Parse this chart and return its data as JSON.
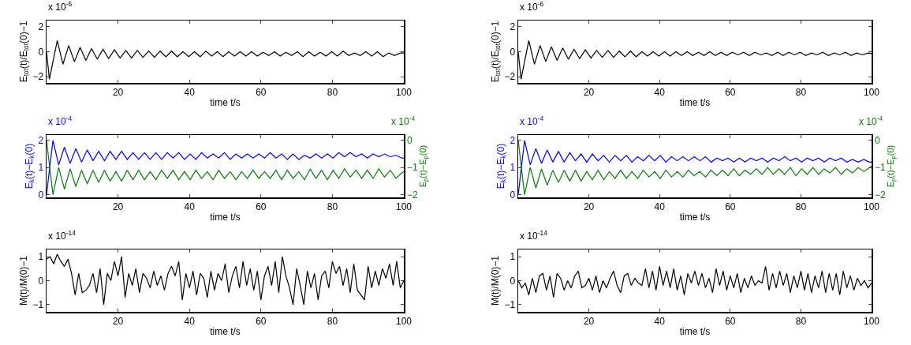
{
  "chart_data": [
    {
      "type": "line",
      "xlabel": "time t/s",
      "ylabel": "E$_{tot}$(t)/E$_{tot}$(0)−1",
      "annotations": [
        "x 10$^{-6}$"
      ],
      "xlim": [
        0,
        100
      ],
      "xticks": [
        20,
        40,
        60,
        80,
        100
      ],
      "ylim": [
        -2.5,
        2.5
      ],
      "yticks": [
        -2,
        0,
        2
      ],
      "grid": false,
      "x": [
        0,
        0.8,
        3.0,
        4.6,
        6.2,
        7.8,
        9.4,
        11.0,
        12.6,
        14.2,
        15.8,
        17.4,
        19.0,
        20.6,
        22.2,
        23.8,
        25.4,
        27.0,
        28.6,
        30.2,
        31.8,
        33.4,
        35.0,
        36.6,
        38.2,
        39.8,
        41.4,
        43.0,
        44.6,
        46.2,
        47.8,
        49.4,
        51.0,
        52.6,
        54.2,
        55.8,
        57.4,
        59.0,
        60.6,
        62.2,
        63.8,
        65.4,
        67.0,
        68.6,
        70.2,
        71.8,
        73.4,
        75.0,
        76.6,
        78.2,
        79.8,
        81.4,
        83.0,
        84.6,
        86.2,
        87.8,
        89.4,
        91.0,
        92.6,
        94.2,
        95.8,
        97.4,
        99.0,
        100
      ],
      "series": [
        {
          "color": "#000000",
          "values": [
            0,
            -2.2,
            0.9,
            -1.0,
            0.5,
            -0.8,
            0.35,
            -0.7,
            0.25,
            -0.6,
            0.2,
            -0.55,
            0.15,
            -0.5,
            0.1,
            -0.5,
            0.1,
            -0.45,
            0.05,
            -0.45,
            0.05,
            -0.4,
            0.05,
            -0.4,
            0.0,
            -0.4,
            0.0,
            -0.4,
            0.05,
            -0.35,
            0.0,
            -0.4,
            0.0,
            -0.35,
            0.0,
            -0.35,
            0.0,
            -0.35,
            -0.05,
            -0.3,
            0.0,
            -0.35,
            -0.05,
            -0.3,
            0.0,
            -0.4,
            0.0,
            -0.35,
            -0.05,
            -0.35,
            0.0,
            -0.35,
            0.05,
            -0.3,
            -0.1,
            -0.3,
            0.0,
            -0.35,
            0.0,
            -0.4,
            -0.1,
            -0.3,
            -0.1,
            -0.1
          ]
        }
      ]
    },
    {
      "type": "line",
      "xlabel": "time t/s",
      "ylabel": "E$_{tot}$(t)/E$_{tot}$(0)−1",
      "annotations": [
        "x 10$^{-6}$"
      ],
      "xlim": [
        0,
        100
      ],
      "xticks": [
        20,
        40,
        60,
        80,
        100
      ],
      "ylim": [
        -2.5,
        2.5
      ],
      "yticks": [
        -2,
        0,
        2
      ],
      "grid": false,
      "x": [
        0,
        0.8,
        3.0,
        4.6,
        6.2,
        7.8,
        9.4,
        11.0,
        12.6,
        14.2,
        15.8,
        17.4,
        19.0,
        20.6,
        22.2,
        23.8,
        25.4,
        27.0,
        28.6,
        30.2,
        31.8,
        33.4,
        35.0,
        36.6,
        38.2,
        39.8,
        41.4,
        43.0,
        44.6,
        46.2,
        47.8,
        49.4,
        51.0,
        52.6,
        54.2,
        55.8,
        57.4,
        59.0,
        60.6,
        62.2,
        63.8,
        65.4,
        67.0,
        68.6,
        70.2,
        71.8,
        73.4,
        75.0,
        76.6,
        78.2,
        79.8,
        81.4,
        83.0,
        84.6,
        86.2,
        87.8,
        89.4,
        91.0,
        92.6,
        94.2,
        95.8,
        97.4,
        99.0,
        100
      ],
      "series": [
        {
          "color": "#000000",
          "values": [
            0,
            -2.2,
            0.9,
            -1.0,
            0.5,
            -0.8,
            0.4,
            -0.7,
            0.3,
            -0.6,
            0.2,
            -0.55,
            0.15,
            -0.5,
            0.1,
            -0.45,
            0.1,
            -0.45,
            0.05,
            -0.4,
            0.05,
            -0.4,
            0.0,
            -0.35,
            0.0,
            -0.35,
            0.0,
            -0.35,
            0.0,
            -0.3,
            0.0,
            -0.3,
            -0.05,
            -0.3,
            0.0,
            -0.3,
            -0.05,
            -0.3,
            -0.05,
            -0.25,
            -0.05,
            -0.3,
            -0.05,
            -0.25,
            -0.1,
            -0.3,
            -0.05,
            -0.3,
            -0.05,
            -0.25,
            -0.05,
            -0.3,
            -0.1,
            -0.25,
            -0.05,
            -0.3,
            -0.1,
            -0.25,
            -0.05,
            -0.3,
            -0.1,
            -0.25,
            -0.1,
            -0.15
          ]
        }
      ]
    },
    {
      "type": "line",
      "xlabel": "time t/s",
      "ylabel": "E$_{k}$(t)−E$_{k}$(0)",
      "y2label": "E$_{p}$(t)−E$_{p}$(0)",
      "annotations": [
        "x 10$^{-4}$",
        "x 10$^{-4}$"
      ],
      "xlim": [
        0,
        100
      ],
      "xticks": [
        20,
        40,
        60,
        80,
        100
      ],
      "ylim": [
        -0.1,
        2.2
      ],
      "yticks": [
        0,
        1,
        2
      ],
      "y2lim": [
        -2.1,
        0.2
      ],
      "y2ticks": [
        -2,
        -1,
        0
      ],
      "grid": false,
      "x": [
        0,
        1.8,
        3.4,
        5.0,
        6.6,
        8.2,
        9.8,
        11.4,
        13.0,
        14.6,
        16.2,
        17.8,
        19.4,
        21.0,
        22.6,
        24.2,
        25.8,
        27.4,
        29.0,
        30.6,
        32.2,
        33.8,
        35.4,
        37.0,
        38.6,
        40.2,
        41.8,
        43.4,
        45.0,
        46.6,
        48.2,
        49.8,
        51.4,
        53.0,
        54.6,
        56.2,
        57.8,
        59.4,
        61.0,
        62.6,
        64.2,
        65.8,
        67.4,
        69.0,
        70.6,
        72.2,
        73.8,
        75.4,
        77.0,
        78.6,
        80.2,
        81.8,
        83.4,
        85.0,
        86.6,
        88.2,
        89.8,
        91.4,
        93.0,
        94.6,
        96.2,
        97.8,
        99.4,
        100
      ],
      "series": [
        {
          "color": "#0000ff",
          "values": [
            0,
            2.0,
            1.1,
            1.75,
            1.15,
            1.7,
            1.2,
            1.65,
            1.25,
            1.6,
            1.25,
            1.6,
            1.3,
            1.6,
            1.3,
            1.55,
            1.3,
            1.55,
            1.3,
            1.55,
            1.3,
            1.55,
            1.35,
            1.55,
            1.3,
            1.5,
            1.3,
            1.55,
            1.35,
            1.5,
            1.35,
            1.55,
            1.3,
            1.5,
            1.35,
            1.5,
            1.35,
            1.5,
            1.35,
            1.55,
            1.35,
            1.5,
            1.3,
            1.5,
            1.3,
            1.45,
            1.35,
            1.5,
            1.35,
            1.5,
            1.35,
            1.55,
            1.4,
            1.55,
            1.4,
            1.5,
            1.35,
            1.5,
            1.4,
            1.5,
            1.4,
            1.45,
            1.35,
            1.35
          ]
        },
        {
          "color": "#008000",
          "axis": "y2",
          "values": [
            0,
            -2.0,
            -1.0,
            -1.8,
            -1.05,
            -1.7,
            -1.1,
            -1.6,
            -1.1,
            -1.55,
            -1.1,
            -1.5,
            -1.15,
            -1.5,
            -1.1,
            -1.45,
            -1.1,
            -1.45,
            -1.15,
            -1.45,
            -1.1,
            -1.4,
            -1.1,
            -1.45,
            -1.15,
            -1.45,
            -1.1,
            -1.4,
            -1.15,
            -1.45,
            -1.1,
            -1.4,
            -1.15,
            -1.45,
            -1.15,
            -1.4,
            -1.1,
            -1.4,
            -1.15,
            -1.4,
            -1.1,
            -1.45,
            -1.1,
            -1.4,
            -1.15,
            -1.45,
            -1.05,
            -1.4,
            -1.1,
            -1.45,
            -1.1,
            -1.4,
            -1.05,
            -1.35,
            -1.1,
            -1.4,
            -1.1,
            -1.4,
            -1.05,
            -1.35,
            -1.1,
            -1.4,
            -1.2,
            -1.15
          ]
        }
      ]
    },
    {
      "type": "line",
      "xlabel": "time t/s",
      "ylabel": "E$_{k}$(t)−E$_{k}$(0)",
      "y2label": "E$_{p}$(t)−E$_{p}$(0)",
      "annotations": [
        "x 10$^{-4}$",
        "x 10$^{-4}$"
      ],
      "xlim": [
        0,
        100
      ],
      "xticks": [
        20,
        40,
        60,
        80,
        100
      ],
      "ylim": [
        -0.1,
        2.2
      ],
      "yticks": [
        0,
        1,
        2
      ],
      "y2lim": [
        -2.1,
        0.2
      ],
      "y2ticks": [
        -2,
        -1,
        0
      ],
      "grid": false,
      "x": [
        0,
        1.8,
        3.4,
        5.0,
        6.6,
        8.2,
        9.8,
        11.4,
        13.0,
        14.6,
        16.2,
        17.8,
        19.4,
        21.0,
        22.6,
        24.2,
        25.8,
        27.4,
        29.0,
        30.6,
        32.2,
        33.8,
        35.4,
        37.0,
        38.6,
        40.2,
        41.8,
        43.4,
        45.0,
        46.6,
        48.2,
        49.8,
        51.4,
        53.0,
        54.6,
        56.2,
        57.8,
        59.4,
        61.0,
        62.6,
        64.2,
        65.8,
        67.4,
        69.0,
        70.6,
        72.2,
        73.8,
        75.4,
        77.0,
        78.6,
        80.2,
        81.8,
        83.4,
        85.0,
        86.6,
        88.2,
        89.8,
        91.4,
        93.0,
        94.6,
        96.2,
        97.8,
        99.4,
        100
      ],
      "series": [
        {
          "color": "#0000ff",
          "values": [
            0,
            2.0,
            1.1,
            1.7,
            1.15,
            1.65,
            1.2,
            1.6,
            1.2,
            1.55,
            1.25,
            1.5,
            1.2,
            1.5,
            1.25,
            1.45,
            1.2,
            1.45,
            1.25,
            1.45,
            1.2,
            1.4,
            1.25,
            1.45,
            1.25,
            1.45,
            1.2,
            1.4,
            1.25,
            1.4,
            1.25,
            1.4,
            1.25,
            1.4,
            1.2,
            1.35,
            1.25,
            1.35,
            1.2,
            1.35,
            1.2,
            1.35,
            1.25,
            1.35,
            1.2,
            1.35,
            1.25,
            1.4,
            1.25,
            1.35,
            1.2,
            1.35,
            1.25,
            1.35,
            1.2,
            1.35,
            1.25,
            1.35,
            1.2,
            1.3,
            1.2,
            1.3,
            1.2,
            1.2
          ]
        },
        {
          "color": "#008000",
          "axis": "y2",
          "values": [
            0,
            -2.0,
            -1.0,
            -1.75,
            -1.05,
            -1.65,
            -1.1,
            -1.55,
            -1.1,
            -1.5,
            -1.1,
            -1.5,
            -1.15,
            -1.45,
            -1.1,
            -1.45,
            -1.15,
            -1.4,
            -1.1,
            -1.4,
            -1.15,
            -1.4,
            -1.1,
            -1.35,
            -1.15,
            -1.4,
            -1.1,
            -1.35,
            -1.15,
            -1.35,
            -1.1,
            -1.3,
            -1.15,
            -1.35,
            -1.1,
            -1.3,
            -1.1,
            -1.3,
            -1.05,
            -1.3,
            -1.1,
            -1.25,
            -1.05,
            -1.25,
            -1.0,
            -1.25,
            -1.05,
            -1.25,
            -1.0,
            -1.3,
            -1.05,
            -1.25,
            -1.0,
            -1.25,
            -1.05,
            -1.2,
            -1.0,
            -1.25,
            -1.05,
            -1.2,
            -1.0,
            -1.15,
            -1.0,
            -0.95
          ]
        }
      ]
    },
    {
      "type": "line",
      "xlabel": "time t/s",
      "ylabel": "M(t)/M(0)−1",
      "annotations": [
        "x 10$^{-14}$"
      ],
      "xlim": [
        0,
        100
      ],
      "xticks": [
        20,
        40,
        60,
        80,
        100
      ],
      "ylim": [
        -1.3,
        1.3
      ],
      "yticks": [
        -1,
        0,
        1
      ],
      "grid": false,
      "x": [
        0,
        1,
        2,
        3,
        4,
        5,
        6,
        7,
        8,
        9,
        10,
        11,
        12,
        13,
        14,
        15,
        16,
        17,
        18,
        19,
        20,
        21,
        22,
        23,
        24,
        25,
        26,
        27,
        28,
        29,
        30,
        31,
        32,
        33,
        34,
        35,
        36,
        37,
        38,
        39,
        40,
        41,
        42,
        43,
        44,
        45,
        46,
        47,
        48,
        49,
        50,
        51,
        52,
        53,
        54,
        55,
        56,
        57,
        58,
        59,
        60,
        61,
        62,
        63,
        64,
        65,
        66,
        67,
        68,
        69,
        70,
        71,
        72,
        73,
        74,
        75,
        76,
        77,
        78,
        79,
        80,
        81,
        82,
        83,
        84,
        85,
        86,
        87,
        88,
        89,
        90,
        91,
        92,
        93,
        94,
        95,
        96,
        97,
        98,
        99,
        100
      ],
      "series": [
        {
          "color": "#000000",
          "values": [
            0.9,
            1.0,
            0.7,
            1.1,
            0.8,
            0.6,
            0.9,
            0.3,
            -0.6,
            0.3,
            -0.5,
            -0.4,
            -0.2,
            0.3,
            -0.5,
            0.5,
            -1.0,
            0.3,
            0.0,
            0.8,
            0.2,
            1.0,
            -0.7,
            0.3,
            -0.2,
            0.5,
            -0.5,
            0.3,
            0.1,
            -0.3,
            0.4,
            -0.2,
            0.2,
            -0.4,
            0.3,
            0.6,
            0.2,
            0.8,
            -0.8,
            0.3,
            -0.3,
            0.4,
            -0.6,
            0.3,
            0.1,
            -0.7,
            0.4,
            -0.4,
            0.3,
            0.0,
            0.7,
            -0.5,
            0.2,
            0.6,
            -0.3,
            0.8,
            -0.2,
            0.5,
            -0.4,
            0.4,
            -0.8,
            0.2,
            0.6,
            -0.2,
            0.8,
            -0.5,
            1.0,
            0.2,
            -0.3,
            -1.0,
            0.5,
            -0.2,
            -1.0,
            0.4,
            -0.3,
            0.3,
            -0.8,
            0.2,
            0.4,
            -0.3,
            0.8,
            0.3,
            0.6,
            -0.2,
            0.5,
            -0.5,
            0.7,
            -0.4,
            -0.6,
            -0.8,
            0.6,
            -0.3,
            0.4,
            -0.2,
            0.5,
            0.1,
            0.7,
            -0.2,
            0.8,
            -0.3,
            0.0
          ]
        }
      ]
    },
    {
      "type": "line",
      "xlabel": "time t/s",
      "ylabel": "M(t)/M(0)−1",
      "annotations": [
        "x 10$^{-14}$"
      ],
      "xlim": [
        0,
        100
      ],
      "xticks": [
        20,
        40,
        60,
        80,
        100
      ],
      "ylim": [
        -1.3,
        1.3
      ],
      "yticks": [
        -1,
        0,
        1
      ],
      "grid": false,
      "x": [
        0,
        1,
        2,
        3,
        4,
        5,
        6,
        7,
        8,
        9,
        10,
        11,
        12,
        13,
        14,
        15,
        16,
        17,
        18,
        19,
        20,
        21,
        22,
        23,
        24,
        25,
        26,
        27,
        28,
        29,
        30,
        31,
        32,
        33,
        34,
        35,
        36,
        37,
        38,
        39,
        40,
        41,
        42,
        43,
        44,
        45,
        46,
        47,
        48,
        49,
        50,
        51,
        52,
        53,
        54,
        55,
        56,
        57,
        58,
        59,
        60,
        61,
        62,
        63,
        64,
        65,
        66,
        67,
        68,
        69,
        70,
        71,
        72,
        73,
        74,
        75,
        76,
        77,
        78,
        79,
        80,
        81,
        82,
        83,
        84,
        85,
        86,
        87,
        88,
        89,
        90,
        91,
        92,
        93,
        94,
        95,
        96,
        97,
        98,
        99,
        100
      ],
      "series": [
        {
          "color": "#000000",
          "values": [
            0.0,
            -0.3,
            -0.1,
            -0.6,
            0.1,
            -0.5,
            0.2,
            0.3,
            -0.4,
            0.2,
            -0.7,
            0.3,
            0.1,
            -0.4,
            0.0,
            -0.3,
            0.2,
            0.4,
            -0.3,
            -0.2,
            0.1,
            -0.4,
            0.2,
            -0.5,
            0.0,
            -0.3,
            0.1,
            0.4,
            -0.2,
            -0.5,
            0.2,
            0.3,
            -0.2,
            0.1,
            -0.1,
            -0.2,
            0.5,
            -0.3,
            0.4,
            -0.4,
            0.6,
            -0.2,
            0.4,
            -0.3,
            0.5,
            -0.4,
            0.2,
            -0.6,
            0.3,
            -0.1,
            0.4,
            -0.2,
            0.3,
            -0.3,
            0.1,
            -0.5,
            0.5,
            -0.2,
            0.4,
            -0.4,
            0.2,
            -0.3,
            0.3,
            -0.5,
            0.1,
            -0.3,
            0.2,
            -0.2,
            0.0,
            -0.1,
            0.6,
            -0.4,
            0.3,
            -0.3,
            0.4,
            -0.2,
            0.3,
            -0.5,
            0.2,
            -0.3,
            0.4,
            -0.4,
            0.3,
            -0.5,
            0.2,
            -0.3,
            0.4,
            -0.5,
            0.3,
            -0.4,
            0.3,
            -0.6,
            0.4,
            -0.3,
            0.2,
            -0.4,
            0.1,
            -0.2,
            0.0,
            -0.3,
            -0.1
          ]
        }
      ]
    }
  ]
}
